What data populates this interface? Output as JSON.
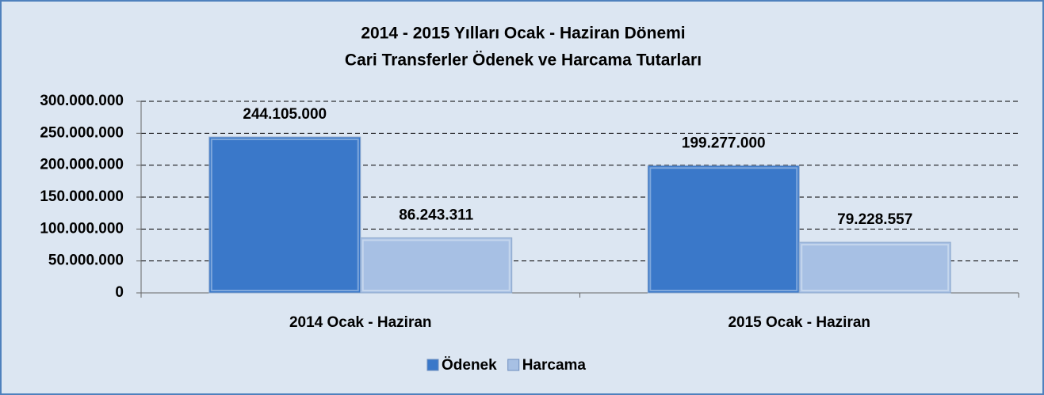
{
  "chart_data": {
    "type": "bar",
    "title": [
      "2014 - 2015 Yılları Ocak - Haziran Dönemi",
      "Cari Transferler Ödenek ve Harcama Tutarları"
    ],
    "categories": [
      "2014 Ocak - Haziran",
      "2015 Ocak - Haziran"
    ],
    "series": [
      {
        "name": "Ödenek",
        "color": "#3a78c9",
        "values": [
          244105000,
          199277000
        ],
        "value_labels": [
          "244.105.000",
          "199.277.000"
        ]
      },
      {
        "name": "Harcama",
        "color": "#a7c0e4",
        "values": [
          86243311,
          79228557
        ],
        "value_labels": [
          "86.243.311",
          "79.228.557"
        ]
      }
    ],
    "ylim": [
      0,
      300000000
    ],
    "yticks": [
      0,
      {
        "value": 50000000,
        "label": "50.000.000"
      },
      {
        "value": 100000000,
        "label": "100.000.000"
      },
      {
        "value": 150000000,
        "label": "150.000.000"
      },
      {
        "value": 200000000,
        "label": "200.000.000"
      },
      {
        "value": 250000000,
        "label": "250.000.000"
      },
      {
        "value": 300000000,
        "label": "300.000.000"
      }
    ],
    "grid": true,
    "legend": "bottom"
  }
}
